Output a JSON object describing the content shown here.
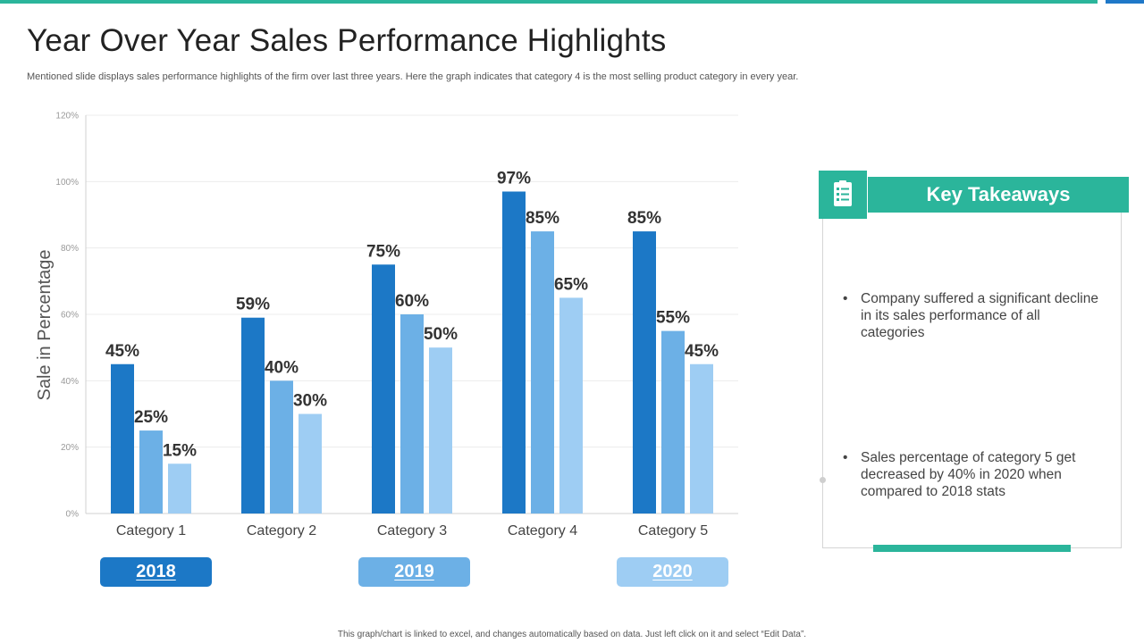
{
  "title": "Year Over Year Sales Performance Highlights",
  "subtitle": "Mentioned slide displays sales performance highlights of the firm over last three years. Here the graph indicates that category 4 is the most selling product category in every year.",
  "colors": {
    "accent": "#2bb59b",
    "blue_accent": "#1f78c8",
    "2018": "#1c78c6",
    "2019": "#6cb0e6",
    "2020": "#9ecdf3"
  },
  "chart_data": {
    "type": "bar",
    "title": "",
    "xlabel": "",
    "ylabel": "Sale in Percentage",
    "ylim": [
      0,
      120
    ],
    "yticks": [
      "0%",
      "20%",
      "40%",
      "60%",
      "80%",
      "100%",
      "120%"
    ],
    "grid": true,
    "categories": [
      "Category 1",
      "Category 2",
      "Category 3",
      "Category 4",
      "Category 5"
    ],
    "series": [
      {
        "name": "2018",
        "values": [
          45,
          59,
          75,
          97,
          85
        ],
        "color": "#1c78c6"
      },
      {
        "name": "2019",
        "values": [
          25,
          40,
          60,
          85,
          55
        ],
        "color": "#6cb0e6"
      },
      {
        "name": "2020",
        "values": [
          15,
          30,
          50,
          65,
          45
        ],
        "color": "#9ecdf3"
      }
    ],
    "value_suffix": "%",
    "legend_placement": "bottom"
  },
  "legend": {
    "y2018": "2018",
    "y2019": "2019",
    "y2020": "2020"
  },
  "takeaways": {
    "heading": "Key Takeaways",
    "icon": "checklist-icon",
    "points": [
      "Company suffered a significant decline in its sales performance of all categories",
      "Sales percentage of category 5 get decreased by 40% in 2020 when compared to 2018 stats"
    ],
    "bullet": "•"
  },
  "footer": "This graph/chart is linked to excel, and changes automatically based on data. Just left click on it and select “Edit Data”."
}
